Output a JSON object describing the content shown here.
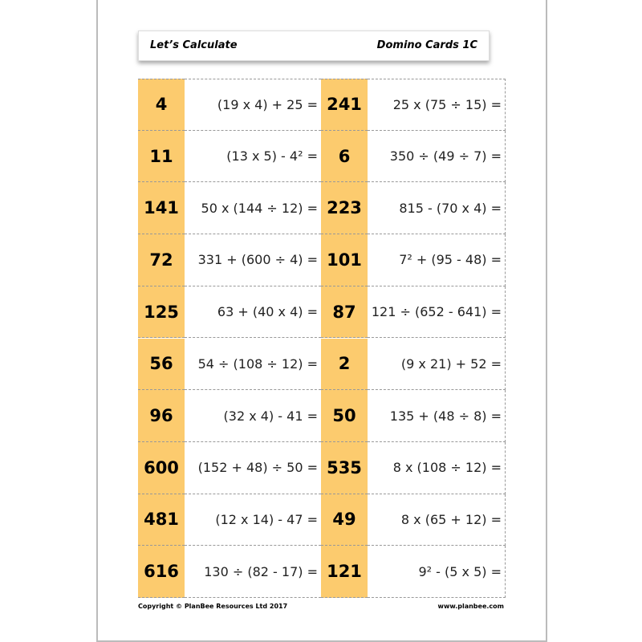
{
  "header": {
    "title": "Let’s Calculate",
    "subtitle": "Domino Cards 1C"
  },
  "rows": [
    [
      {
        "number": "4",
        "expression": "(19 x 4) + 25 ="
      },
      {
        "number": "241",
        "expression": "25 x (75 ÷ 15) ="
      }
    ],
    [
      {
        "number": "11",
        "expression": "(13 x 5) - 4² ="
      },
      {
        "number": "6",
        "expression": "350 ÷ (49 ÷ 7) ="
      }
    ],
    [
      {
        "number": "141",
        "expression": "50 x (144 ÷ 12) ="
      },
      {
        "number": "223",
        "expression": "815 - (70 x 4) ="
      }
    ],
    [
      {
        "number": "72",
        "expression": "331 + (600 ÷ 4) ="
      },
      {
        "number": "101",
        "expression": "7² + (95 - 48) ="
      }
    ],
    [
      {
        "number": "125",
        "expression": "63 + (40 x 4) ="
      },
      {
        "number": "87",
        "expression": "121 ÷ (652 - 641) ="
      }
    ],
    [
      {
        "number": "56",
        "expression": "54 ÷ (108 ÷ 12) ="
      },
      {
        "number": "2",
        "expression": "(9 x 21) + 52 ="
      }
    ],
    [
      {
        "number": "96",
        "expression": "(32 x 4) - 41 ="
      },
      {
        "number": "50",
        "expression": "135 + (48 ÷ 8) ="
      }
    ],
    [
      {
        "number": "600",
        "expression": "(152 + 48) ÷ 50 ="
      },
      {
        "number": "535",
        "expression": "8 x (108 ÷ 12) ="
      }
    ],
    [
      {
        "number": "481",
        "expression": "(12 x 14) - 47 ="
      },
      {
        "number": "49",
        "expression": "8 x (65 + 12) ="
      }
    ],
    [
      {
        "number": "616",
        "expression": "130 ÷ (82 - 17) ="
      },
      {
        "number": "121",
        "expression": "9² - (5 x 5) ="
      }
    ]
  ],
  "footer": {
    "copyright": "Copyright © PlanBee Resources Ltd 2017",
    "website": "www.planbee.com"
  }
}
